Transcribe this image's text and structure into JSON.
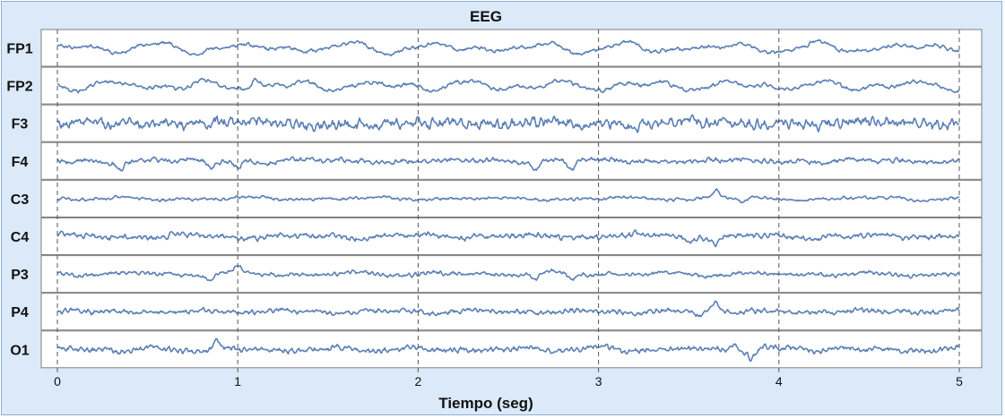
{
  "chart_data": {
    "type": "line",
    "title": "EEG",
    "xlabel": "Tiempo (seg)",
    "ylabel": "",
    "xlim": [
      0,
      5
    ],
    "x_ticks": [
      "0",
      "1",
      "2",
      "3",
      "4",
      "5"
    ],
    "grid": "vertical dashed lines at each second",
    "line_color": "#5b7fb5",
    "background_color": "#dbe9f8",
    "channels": [
      {
        "name": "FP1",
        "character": "slow high-amplitude waves"
      },
      {
        "name": "FP2",
        "character": "slow high-amplitude waves"
      },
      {
        "name": "F3",
        "character": "dense fast activity"
      },
      {
        "name": "F4",
        "character": "moderate activity with sharp dips"
      },
      {
        "name": "C3",
        "character": "low amplitude with spike near 3.65 s"
      },
      {
        "name": "C4",
        "character": "moderate activity with dips near 3.5 s"
      },
      {
        "name": "P3",
        "character": "moderate activity with dips"
      },
      {
        "name": "P4",
        "character": "fast activity with spike near 3.65 s"
      },
      {
        "name": "O1",
        "character": "mixed activity with dips near 3.85 s"
      }
    ]
  }
}
